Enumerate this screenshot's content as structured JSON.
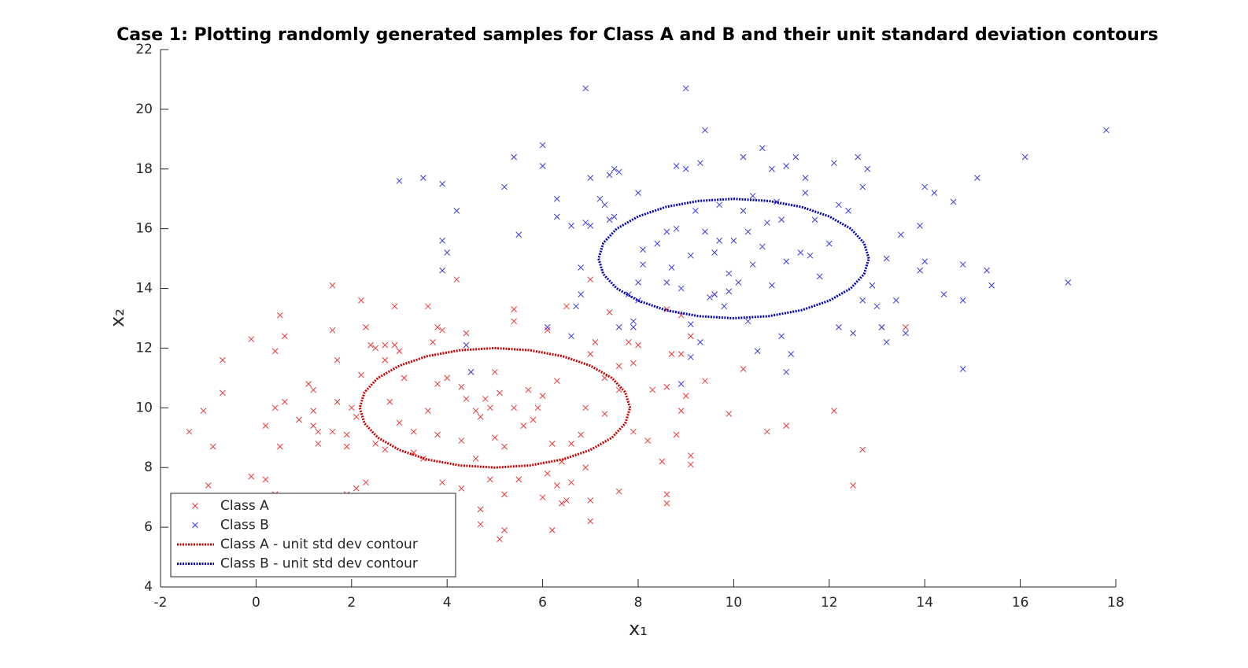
{
  "chart_data": {
    "type": "scatter",
    "title": "Case 1: Plotting randomly generated samples for Class A and B and their unit standard deviation contours",
    "xlabel": "x₁",
    "ylabel": "x₂",
    "xlim": [
      -2,
      18
    ],
    "xticks": [
      -2,
      0,
      2,
      4,
      6,
      8,
      10,
      12,
      14,
      16,
      18
    ],
    "ylim": [
      4,
      22
    ],
    "yticks": [
      4,
      6,
      8,
      10,
      12,
      14,
      16,
      18,
      20,
      22
    ],
    "grid": false,
    "legend": "lower left",
    "series": [
      {
        "name": "Class A",
        "kind": "marker",
        "color": "#e8393b",
        "x": [
          -1.4,
          -1.1,
          -0.9,
          -0.7,
          -0.7,
          -1,
          -0.1,
          -0.1,
          0.2,
          0.2,
          0.4,
          0.4,
          0.4,
          0.5,
          0.5,
          0.6,
          0.6,
          0.9,
          1.1,
          1.2,
          1.2,
          1.2,
          1.3,
          1.3,
          1.6,
          1.6,
          1.7,
          1.7,
          1.6,
          1.9,
          1.9,
          1.9,
          2.0,
          2.1,
          2.1,
          2.2,
          2.2,
          2.3,
          2.4,
          2.3,
          2.5,
          2.5,
          2.7,
          2.7,
          2.8,
          2.7,
          2.9,
          2.9,
          3.0,
          3.0,
          3.1,
          3.3,
          3.3,
          3.5,
          3.6,
          3.7,
          3.6,
          3.8,
          3.8,
          3.8,
          3.9,
          3.9,
          4.0,
          4.2,
          4.3,
          4.3,
          4.3,
          4.4,
          4.4,
          4.5,
          4.6,
          4.6,
          4.7,
          4.7,
          4.7,
          4.8,
          4.9,
          4.9,
          5.0,
          5.0,
          5.1,
          5.1,
          5.2,
          5.2,
          5.4,
          5.4,
          5.4,
          5.5,
          5.6,
          5.7,
          5.8,
          5.9,
          6.0,
          6.0,
          6.1,
          6.1,
          6.2,
          6.3,
          6.3,
          6.4,
          6.5,
          6.5,
          6.6,
          6.6,
          6.8,
          6.9,
          6.9,
          7.0,
          7.0,
          7.0,
          7.0,
          7.1,
          7.3,
          7.3,
          7.4,
          7.6,
          7.6,
          7.6,
          7.8,
          7.9,
          7.9,
          8.0,
          8.2,
          8.3,
          8.5,
          8.6,
          8.6,
          8.6,
          8.6,
          8.7,
          8.8,
          8.9,
          8.9,
          8.9,
          9.0,
          9.1,
          9.1,
          9.1,
          9.4,
          9.6,
          9.9,
          10.2,
          10.7,
          11.1,
          12.1,
          12.5,
          12.7,
          13.1,
          13.6,
          5.2,
          6.2,
          6.4
        ],
        "values": [
          9.2,
          9.9,
          8.7,
          10.5,
          11.6,
          7.4,
          12.3,
          7.7,
          9.4,
          7.6,
          11.9,
          10,
          7.1,
          13.1,
          8.7,
          10.2,
          12.4,
          9.6,
          10.8,
          10.6,
          9.9,
          9.4,
          8.8,
          9.2,
          14.1,
          12.6,
          11.6,
          10.2,
          9.2,
          9.1,
          8.7,
          7.1,
          10.0,
          9.7,
          7.3,
          13.6,
          11.1,
          12.7,
          12.1,
          7.5,
          8.8,
          12.0,
          12.1,
          11.6,
          10.2,
          8.6,
          13.4,
          12.1,
          11.9,
          9.5,
          11.0,
          8.5,
          9.2,
          8.3,
          9.9,
          12.2,
          13.4,
          12.7,
          10.8,
          9.1,
          7.5,
          12.6,
          11.0,
          14.3,
          10.7,
          8.9,
          7.3,
          12.5,
          10.3,
          11.2,
          9.9,
          8.3,
          9.7,
          6.6,
          6.1,
          10.3,
          10.0,
          7.6,
          9.0,
          11.2,
          10.5,
          5.6,
          7.1,
          8.7,
          10.0,
          13.3,
          12.9,
          7.6,
          9.4,
          10.6,
          9.6,
          10.0,
          7.0,
          10.4,
          12.6,
          7.8,
          8.8,
          10.9,
          7.4,
          8.2,
          13.4,
          6.9,
          7.5,
          8.8,
          9.1,
          10.0,
          8.0,
          11.8,
          14.3,
          6.2,
          6.9,
          12.2,
          11.0,
          9.8,
          13.2,
          11.4,
          7.2,
          10.6,
          12.2,
          11.5,
          9.2,
          12.1,
          8.9,
          10.6,
          8.2,
          10.7,
          13.3,
          7.1,
          6.8,
          11.8,
          9.1,
          13.1,
          11.8,
          9.9,
          10.4,
          8.1,
          8.4,
          12.4,
          10.9,
          13.8,
          9.8,
          11.3,
          9.2,
          9.4,
          9.9,
          7.4,
          8.6,
          12.7,
          12.7,
          5.9,
          5.9,
          6.8
        ]
      },
      {
        "name": "Class B",
        "kind": "marker",
        "color": "#3b3bdc",
        "x": [
          3.0,
          3.5,
          3.9,
          3.9,
          4.0,
          3.9,
          4.2,
          4.4,
          4.5,
          5.2,
          5.4,
          5.5,
          6.0,
          6.0,
          6.1,
          6.3,
          6.3,
          6.6,
          6.6,
          6.7,
          6.8,
          6.8,
          6.9,
          6.9,
          7.0,
          7.0,
          7.2,
          7.3,
          7.4,
          7.4,
          7.5,
          7.5,
          7.6,
          7.6,
          7.8,
          7.9,
          7.9,
          8.0,
          8.0,
          8.1,
          8.1,
          8.0,
          8.4,
          8.6,
          8.6,
          8.7,
          8.8,
          8.8,
          8.9,
          8.9,
          9.0,
          9.0,
          9.1,
          9.1,
          9.1,
          9.2,
          9.3,
          9.3,
          9.4,
          9.4,
          9.5,
          9.6,
          9.6,
          9.7,
          9.7,
          9.8,
          9.9,
          9.9,
          10.0,
          10.1,
          10.2,
          10.2,
          10.3,
          10.3,
          10.4,
          10.4,
          10.5,
          10.6,
          10.6,
          10.7,
          10.8,
          10.8,
          10.9,
          11.0,
          11.0,
          11.1,
          11.1,
          11.1,
          11.2,
          11.3,
          11.4,
          11.5,
          11.5,
          11.6,
          11.7,
          11.8,
          12.0,
          12.1,
          12.2,
          12.2,
          12.4,
          12.5,
          12.6,
          12.7,
          12.7,
          12.8,
          12.9,
          13.0,
          13.1,
          13.2,
          13.2,
          13.4,
          13.5,
          13.6,
          13.9,
          14.0,
          13.9,
          14.0,
          14.2,
          14.4,
          14.6,
          14.8,
          14.8,
          14.8,
          15.1,
          15.3,
          15.4,
          16.1,
          17.0,
          17.8
        ],
        "values": [
          17.6,
          17.7,
          17.5,
          15.6,
          15.2,
          14.6,
          16.6,
          12.1,
          11.2,
          17.4,
          18.4,
          15.8,
          18.8,
          18.1,
          12.7,
          17.0,
          16.4,
          16.1,
          12.4,
          13.4,
          14.7,
          13.8,
          20.7,
          16.2,
          17.7,
          16.1,
          17.0,
          16.8,
          17.8,
          16.3,
          18.0,
          16.4,
          17.9,
          12.7,
          13.8,
          12.9,
          12.7,
          17.2,
          14.2,
          15.3,
          14.8,
          13.6,
          15.5,
          15.9,
          14.2,
          14.7,
          18.1,
          16.0,
          14.0,
          10.8,
          20.7,
          18.0,
          15.1,
          11.7,
          12.8,
          16.6,
          18.2,
          12.2,
          19.3,
          15.9,
          13.7,
          15.2,
          13.8,
          16.8,
          15.6,
          13.4,
          14.5,
          13.9,
          15.6,
          14.2,
          18.4,
          16.6,
          15.9,
          12.9,
          17.1,
          14.8,
          11.9,
          18.7,
          15.4,
          16.2,
          18.0,
          14.1,
          16.9,
          16.3,
          12.4,
          18.1,
          14.9,
          11.2,
          11.8,
          18.4,
          15.2,
          17.7,
          17.2,
          15.1,
          16.3,
          14.4,
          15.5,
          18.2,
          16.8,
          12.7,
          16.6,
          12.5,
          18.4,
          17.4,
          13.6,
          18.0,
          14.1,
          13.4,
          12.7,
          15.0,
          12.2,
          13.6,
          15.8,
          12.5,
          16.1,
          17.4,
          14.6,
          14.9,
          17.2,
          13.8,
          16.9,
          14.8,
          11.3,
          13.6,
          17.7,
          14.6,
          14.1,
          18.4,
          14.2,
          19.3
        ]
      },
      {
        "name": "Class A - unit std dev contour",
        "kind": "dotted-line",
        "color": "#cc0000",
        "x": [
          7.83,
          7.73,
          7.45,
          7,
          6.42,
          5.73,
          5,
          4.27,
          3.58,
          3,
          2.55,
          2.27,
          2.17,
          2.27,
          2.55,
          3,
          3.58,
          4.27,
          5,
          5.73,
          6.42,
          7,
          7.45,
          7.73,
          7.83
        ],
        "values": [
          10,
          10.52,
          11,
          11.41,
          11.73,
          11.93,
          12,
          11.93,
          11.73,
          11.41,
          11,
          10.52,
          10,
          9.48,
          9,
          8.59,
          8.27,
          8.07,
          8,
          8.07,
          8.27,
          8.59,
          9,
          9.48,
          10
        ]
      },
      {
        "name": "Class B - unit std dev contour",
        "kind": "dotted-line",
        "color": "#0000b4",
        "x": [
          12.83,
          12.73,
          12.45,
          12,
          11.42,
          10.73,
          10,
          9.27,
          8.58,
          8,
          7.55,
          7.27,
          7.17,
          7.27,
          7.55,
          8,
          8.58,
          9.27,
          10,
          10.73,
          11.42,
          12,
          12.45,
          12.73,
          12.83
        ],
        "values": [
          15,
          15.52,
          16,
          16.41,
          16.73,
          16.93,
          17,
          16.93,
          16.73,
          16.41,
          16,
          15.52,
          15,
          14.48,
          14,
          13.59,
          13.27,
          13.07,
          13,
          13.07,
          13.27,
          13.59,
          14,
          14.48,
          15
        ]
      }
    ]
  }
}
